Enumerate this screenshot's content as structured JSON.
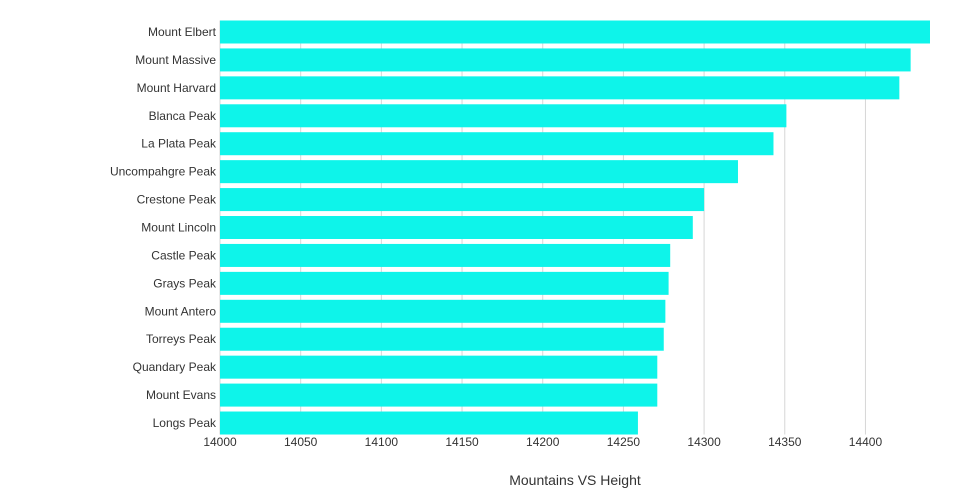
{
  "chart_data": {
    "type": "bar",
    "orientation": "horizontal",
    "title": "",
    "xlabel": "Mountains VS Height",
    "ylabel": "",
    "categories": [
      "Mount Elbert",
      "Mount Massive",
      "Mount Harvard",
      "Blanca Peak",
      "La Plata Peak",
      "Uncompahgre Peak",
      "Crestone Peak",
      "Mount Lincoln",
      "Castle Peak",
      "Grays Peak",
      "Mount Antero",
      "Torreys Peak",
      "Quandary Peak",
      "Mount Evans",
      "Longs Peak"
    ],
    "values": [
      14440,
      14428,
      14421,
      14351,
      14343,
      14321,
      14300,
      14293,
      14279,
      14278,
      14276,
      14275,
      14271,
      14271,
      14259
    ],
    "xlim": [
      14000,
      14440
    ],
    "xticks": [
      "14000",
      "14050",
      "14100",
      "14150",
      "14200",
      "14250",
      "14300",
      "14350",
      "14400"
    ],
    "grid": "vertical",
    "legend": "none",
    "bar_color": "#0ef4ea",
    "grid_color": "#d6d6d6"
  }
}
